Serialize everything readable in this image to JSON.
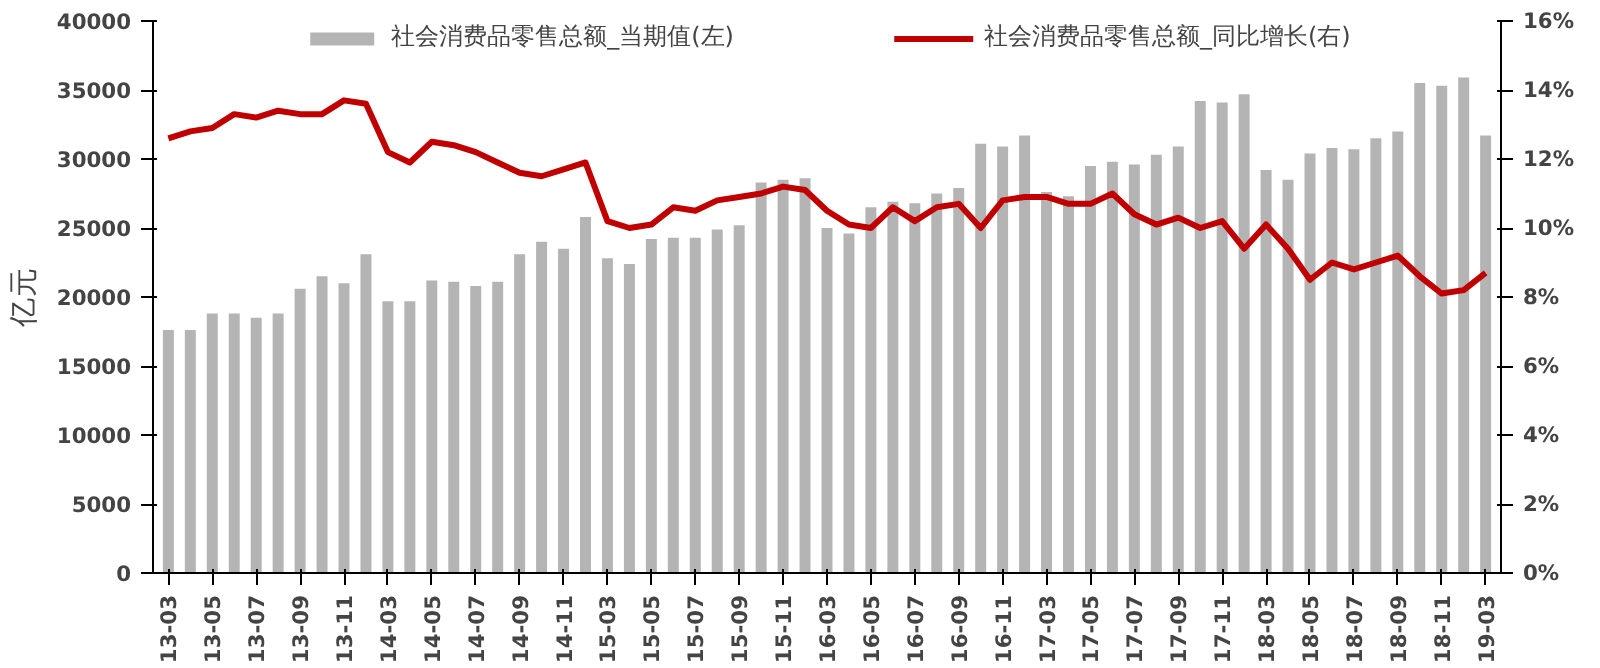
{
  "chart_data": {
    "type": "bar",
    "ylabel": "亿元",
    "legend": "top",
    "grid": false,
    "categories": [
      "13-03",
      null,
      "13-05",
      null,
      "13-07",
      null,
      "13-09",
      null,
      "13-11",
      null,
      "14-03",
      null,
      "14-05",
      null,
      "14-07",
      null,
      "14-09",
      null,
      "14-11",
      null,
      "15-03",
      null,
      "15-05",
      null,
      "15-07",
      null,
      "15-09",
      null,
      "15-11",
      null,
      "16-03",
      null,
      "16-05",
      null,
      "16-07",
      null,
      "16-09",
      null,
      "16-11",
      null,
      "17-03",
      null,
      "17-05",
      null,
      "17-07",
      null,
      "17-09",
      null,
      "17-11",
      null,
      "18-03",
      null,
      "18-05",
      null,
      "18-07",
      null,
      "18-09",
      null,
      "18-11",
      null,
      "19-03"
    ],
    "ylim": [
      0,
      40000
    ],
    "yticks": [
      0,
      5000,
      10000,
      15000,
      20000,
      25000,
      30000,
      35000,
      40000
    ],
    "y2lim": [
      0,
      16
    ],
    "y2ticks": [
      {
        "value": 0,
        "label": "0%"
      },
      {
        "value": 2,
        "label": "2%"
      },
      {
        "value": 4,
        "label": "4%"
      },
      {
        "value": 6,
        "label": "6%"
      },
      {
        "value": 8,
        "label": "8%"
      },
      {
        "value": 10,
        "label": "10%"
      },
      {
        "value": 12,
        "label": "12%"
      },
      {
        "value": 14,
        "label": "14%"
      },
      {
        "value": 16,
        "label": "16%"
      }
    ],
    "series": [
      {
        "name": "社会消费品零售总额_当期值(左)",
        "color": "#b4b4b4",
        "values": [
          17600,
          17600,
          18800,
          18800,
          18500,
          18800,
          20600,
          21500,
          21000,
          23100,
          19700,
          19700,
          21200,
          21100,
          20800,
          21100,
          23100,
          24000,
          23500,
          25800,
          22800,
          22400,
          24200,
          24300,
          24300,
          24900,
          25200,
          28300,
          28500,
          28600,
          25000,
          24600,
          26500,
          26900,
          26800,
          27500,
          27900,
          31100,
          30900,
          31700,
          27600,
          27300,
          29500,
          29800,
          29600,
          30300,
          30900,
          34200,
          34100,
          34700,
          29200,
          28500,
          30400,
          30800,
          30700,
          31500,
          32000,
          35500,
          35300,
          35900,
          31700
        ]
      },
      {
        "name": "社会消费品零售总额_同比增长(右)",
        "type": "line",
        "axis": "y2",
        "color": "#c00000",
        "line_style": "solid",
        "marker": "none",
        "values": [
          12.6,
          12.8,
          12.9,
          13.3,
          13.2,
          13.4,
          13.3,
          13.3,
          13.7,
          13.6,
          12.2,
          11.9,
          12.5,
          12.4,
          12.2,
          11.9,
          11.6,
          11.5,
          11.7,
          11.9,
          10.2,
          10.0,
          10.1,
          10.6,
          10.5,
          10.8,
          10.9,
          11.0,
          11.2,
          11.1,
          10.5,
          10.1,
          10.0,
          10.6,
          10.2,
          10.6,
          10.7,
          10.0,
          10.8,
          10.9,
          10.9,
          10.7,
          10.7,
          11.0,
          10.4,
          10.1,
          10.3,
          10.0,
          10.2,
          9.4,
          10.1,
          9.4,
          8.5,
          9.0,
          8.8,
          9.0,
          9.2,
          8.6,
          8.1,
          8.2,
          8.7
        ]
      }
    ]
  }
}
